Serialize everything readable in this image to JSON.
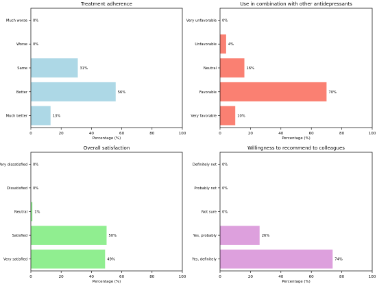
{
  "chart_data": [
    {
      "type": "bar",
      "orientation": "horizontal",
      "title": "Treatment adherence",
      "xlabel": "Percentage (%)",
      "xlim": [
        0,
        100
      ],
      "xticks": [
        0,
        20,
        40,
        60,
        80,
        100
      ],
      "categories": [
        "Much better",
        "Better",
        "Same",
        "Worse",
        "Much worse"
      ],
      "values": [
        13,
        56,
        31,
        0,
        0
      ],
      "value_labels": [
        "13%",
        "56%",
        "31%",
        "0%",
        "0%"
      ],
      "color": "#add8e6"
    },
    {
      "type": "bar",
      "orientation": "horizontal",
      "title": "Use in combination with other antidepressants",
      "xlabel": "Percentage (%)",
      "xlim": [
        0,
        100
      ],
      "xticks": [
        0,
        20,
        40,
        60,
        80,
        100
      ],
      "categories": [
        "Very favorable",
        "Favorable",
        "Neutral",
        "Unfavorable",
        "Very unfavorable"
      ],
      "values": [
        10,
        70,
        16,
        4,
        0
      ],
      "value_labels": [
        "10%",
        "70%",
        "16%",
        "4%",
        "0%"
      ],
      "color": "#fa8072"
    },
    {
      "type": "bar",
      "orientation": "horizontal",
      "title": "Overall satisfaction",
      "xlabel": "Percentage (%)",
      "xlim": [
        0,
        100
      ],
      "xticks": [
        0,
        20,
        40,
        60,
        80,
        100
      ],
      "categories": [
        "Very satisfied",
        "Satisfied",
        "Neutral",
        "Dissatisfied",
        "Very dissatisfied"
      ],
      "values": [
        49,
        50,
        1,
        0,
        0
      ],
      "value_labels": [
        "49%",
        "50%",
        "1%",
        "0%",
        "0%"
      ],
      "color": "#90ee90"
    },
    {
      "type": "bar",
      "orientation": "horizontal",
      "title": "Willingness to recommend to colleagues",
      "xlabel": "Percentage (%)",
      "xlim": [
        0,
        100
      ],
      "xticks": [
        0,
        20,
        40,
        60,
        80,
        100
      ],
      "categories": [
        "Yes, definitely",
        "Yes, probably",
        "Not sure",
        "Probably not",
        "Definitely not"
      ],
      "values": [
        74,
        26,
        0,
        0,
        0
      ],
      "value_labels": [
        "74%",
        "26%",
        "0%",
        "0%",
        "0%"
      ],
      "color": "#dda0dd"
    }
  ]
}
